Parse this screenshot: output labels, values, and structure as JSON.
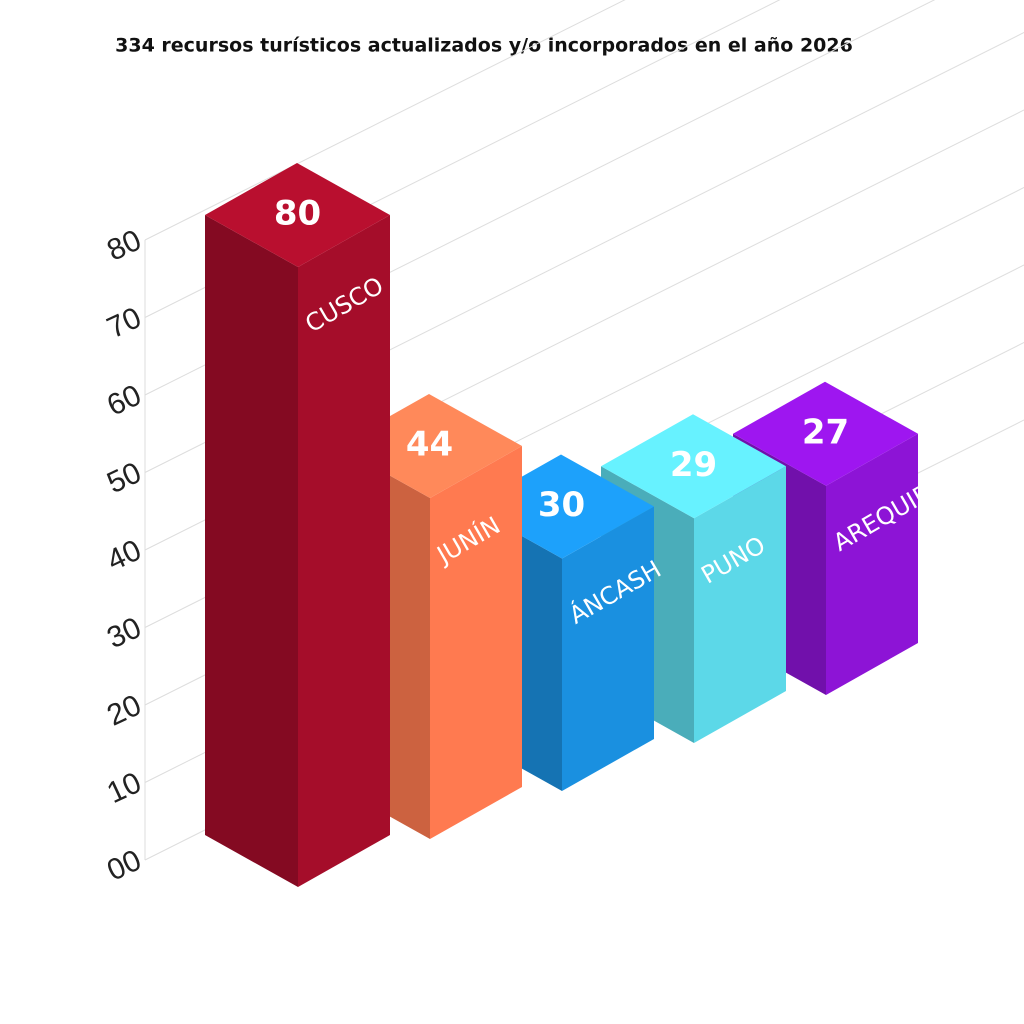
{
  "chart_data": {
    "type": "bar3d",
    "title": "334 recursos turísticos actualizados y/o incorporados en el año 2026",
    "categories": [
      "CUSCO",
      "JUNÍN",
      "ÁNCASH",
      "PUNO",
      "AREQUIPA"
    ],
    "values": [
      80,
      44,
      30,
      29,
      27
    ],
    "colors": [
      "#a50d2a",
      "#ff7a50",
      "#1a90e0",
      "#5cd8e8",
      "#8d14d6"
    ],
    "ylim": [
      0,
      80
    ],
    "yticks": [
      {
        "value": 0,
        "label": "00"
      },
      10,
      20,
      30,
      40,
      50,
      60,
      70,
      80
    ],
    "grid": true
  }
}
